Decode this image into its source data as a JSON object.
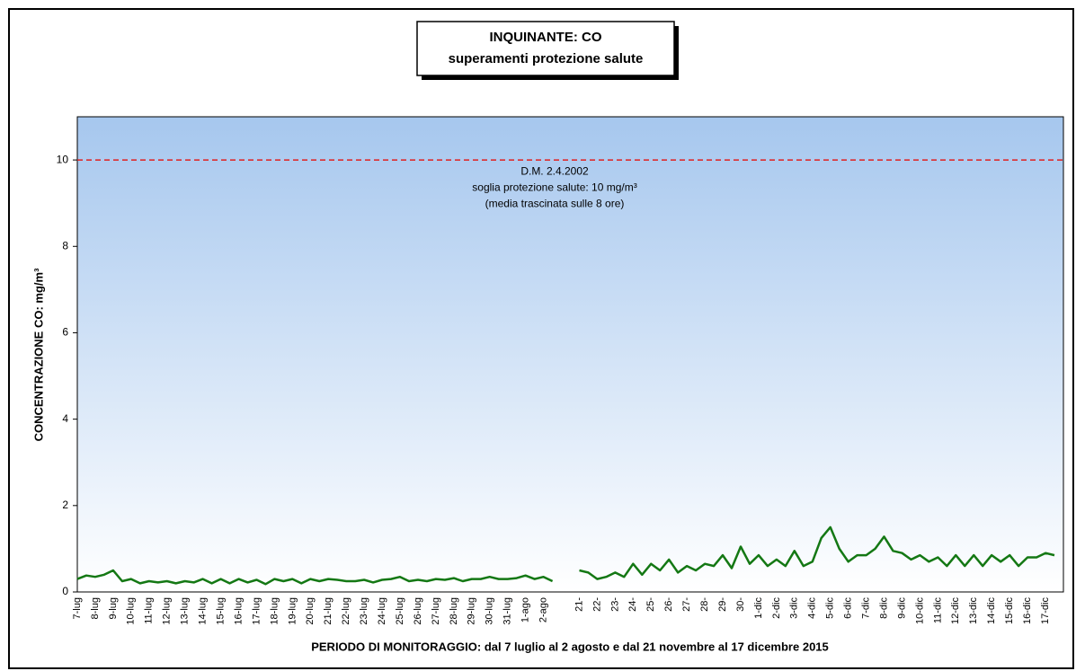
{
  "chart_data": {
    "type": "line",
    "title": [
      "INQUINANTE: CO",
      "superamenti protezione salute"
    ],
    "xlabel": "PERIODO DI MONITORAGGIO: dal 7 luglio al 2 agosto e dal 21 novembre al 17 dicembre 2015",
    "ylabel": "CONCENTRAZIONE CO: mg/m³",
    "categories": [
      "7-lug",
      null,
      "8-lug",
      null,
      "9-lug",
      null,
      "10-lug",
      null,
      "11-lug",
      null,
      "12-lug",
      null,
      "13-lug",
      null,
      "14-lug",
      null,
      "15-lug",
      null,
      "16-lug",
      null,
      "17-lug",
      null,
      "18-lug",
      null,
      "19-lug",
      null,
      "20-lug",
      null,
      "21-lug",
      null,
      "22-lug",
      null,
      "23-lug",
      null,
      "24-lug",
      null,
      "25-lug",
      null,
      "26-lug",
      null,
      "27-lug",
      null,
      "28-lug",
      null,
      "29-lug",
      null,
      "30-lug",
      null,
      "31-lug",
      null,
      "1-ago",
      null,
      "2-ago",
      null,
      null,
      null,
      "21-",
      null,
      "22-",
      null,
      "23-",
      null,
      "24-",
      null,
      "25-",
      null,
      "26-",
      null,
      "27-",
      null,
      "28-",
      null,
      "29-",
      null,
      "30-",
      null,
      "1-dic",
      null,
      "2-dic",
      null,
      "3-dic",
      null,
      "4-dic",
      null,
      "5-dic",
      null,
      "6-dic",
      null,
      "7-dic",
      null,
      "8-dic",
      null,
      "9-dic",
      null,
      "10-dic",
      null,
      "11-dic",
      null,
      "12-dic",
      null,
      "13-dic",
      null,
      "14-dic",
      null,
      "15-dic",
      null,
      "16-dic",
      null,
      "17-dic",
      null
    ],
    "series": [
      {
        "color": "#147814",
        "values": [
          0.3,
          0.38,
          0.35,
          0.4,
          0.5,
          0.25,
          0.3,
          0.2,
          0.25,
          0.22,
          0.25,
          0.2,
          0.25,
          0.22,
          0.3,
          0.2,
          0.3,
          0.2,
          0.3,
          0.22,
          0.28,
          0.18,
          0.3,
          0.25,
          0.3,
          0.2,
          0.3,
          0.25,
          0.3,
          0.28,
          0.25,
          0.25,
          0.28,
          0.22,
          0.28,
          0.3,
          0.35,
          0.25,
          0.28,
          0.25,
          0.3,
          0.28,
          0.32,
          0.25,
          0.3,
          0.3,
          0.35,
          0.3,
          0.3,
          0.32,
          0.38,
          0.3,
          0.35,
          0.25,
          null,
          null,
          0.5,
          0.45,
          0.3,
          0.35,
          0.45,
          0.35,
          0.65,
          0.4,
          0.65,
          0.5,
          0.75,
          0.45,
          0.6,
          0.5,
          0.65,
          0.6,
          0.85,
          0.55,
          1.05,
          0.65,
          0.85,
          0.6,
          0.75,
          0.6,
          0.95,
          0.6,
          0.7,
          1.25,
          1.5,
          1.0,
          0.7,
          0.85,
          0.85,
          1.0,
          1.28,
          0.95,
          0.9,
          0.75,
          0.85,
          0.7,
          0.8,
          0.6,
          0.85,
          0.6,
          0.85,
          0.6,
          0.85,
          0.7,
          0.85,
          0.6,
          0.8,
          0.8,
          0.9,
          0.85
        ]
      }
    ],
    "threshold": {
      "value": 10,
      "color": "#e02020",
      "label": [
        "D.M. 2.4.2002",
        "soglia protezione salute: 10 mg/m³",
        "(media trascinata sulle 8 ore)"
      ]
    },
    "ylim": [
      0,
      11
    ],
    "yticks": [
      0,
      2,
      4,
      6,
      8,
      10
    ],
    "grid": false
  }
}
